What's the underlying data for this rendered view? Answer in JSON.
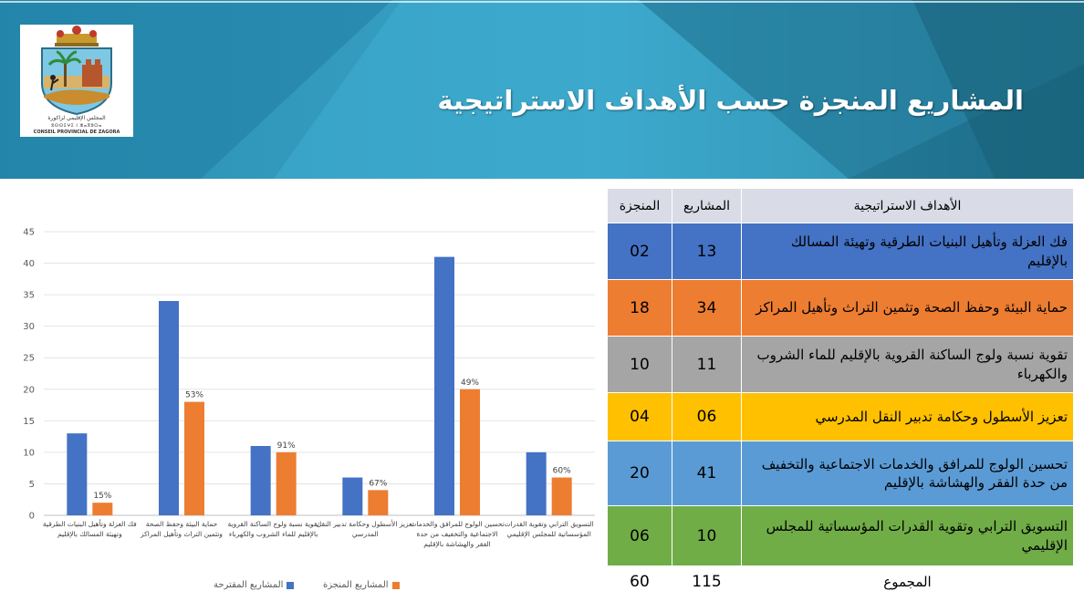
{
  "header": {
    "title": "المشاريع المنجزة حسب الأهداف الاستراتيجية",
    "logo": {
      "line1": "المجلس الإقليمي لزاكورة",
      "line2": "ⵓⵙⵙⵉⵖⵉ ⵏ ⵣⴰⴳⵓⵔⴰ",
      "line3": "CONSEIL PROVINCIAL DE ZAGORA"
    }
  },
  "colors": {
    "proposed": "#4472c4",
    "completed": "#ed7d31",
    "banner_dark": "#1f6f8b",
    "banner_mid": "#2e95b7",
    "banner_light": "#54b4d2"
  },
  "chart_data": {
    "type": "bar",
    "categories": [
      "فك العزلة وتأهيل البنيات الطرقية وتهيئة المسالك بالإقليم",
      "حماية البيئة وحفظ الصحة وتثمين التراث وتأهيل المراكز",
      "تقوية نسبة ولوج الساكنة القروية بالإقليم للماء الشروب والكهرباء",
      "تعزيز الأسطول وحكامة تدبير النقل المدرسي",
      "تحسين الولوج للمرافق والخدمات الاجتماعية والتخفيف من حدة الفقر والهشاشة بالإقليم",
      "التسويق الترابي وتقوية القدرات المؤسساتية للمجلس الإقليمي"
    ],
    "category_lines": [
      [
        "فك العزلة وتأهيل البنيات الطرقية",
        "وتهيئة المسالك بالإقليم"
      ],
      [
        "حماية البيئة وحفظ الصحة",
        "وتثمين التراث وتأهيل المراكز"
      ],
      [
        "تقوية نسبة ولوج الساكنة القروية",
        "بالإقليم للماء الشروب والكهرباء"
      ],
      [
        "تعزيز الأسطول وحكامة تدبير النقل",
        "المدرسي"
      ],
      [
        "تحسين الولوج للمرافق والخدمات",
        "الاجتماعية والتخفيف من حدة",
        "الفقر والهشاشة بالإقليم"
      ],
      [
        "التسويق الترابي وتقوية القدرات",
        "المؤسساتية للمجلس الإقليمي"
      ]
    ],
    "series": [
      {
        "name": "المشاريع المقترحة",
        "values": [
          13,
          34,
          11,
          6,
          41,
          10
        ]
      },
      {
        "name": "المشاريع المنجزة",
        "values": [
          2,
          18,
          10,
          4,
          20,
          6
        ]
      }
    ],
    "data_labels": [
      "15%",
      "53%",
      "91%",
      "67%",
      "49%",
      "60%"
    ],
    "ylim": [
      0,
      45
    ],
    "yticks": [
      0,
      5,
      10,
      15,
      20,
      25,
      30,
      35,
      40,
      45
    ],
    "legend_position": "bottom",
    "title": "",
    "xlabel": "",
    "ylabel": ""
  },
  "table": {
    "headers": {
      "goals": "الأهداف الاستراتيجية",
      "projects": "المشاريع",
      "completed": "المنجزة"
    },
    "rows": [
      {
        "goal": "فك العزلة وتأهيل البنيات الطرقية وتهيئة المسالك بالإقليم",
        "projects": "13",
        "completed": "02",
        "color": "#4472c4"
      },
      {
        "goal": "حماية البيئة وحفظ الصحة وتثمين التراث وتأهيل المراكز",
        "projects": "34",
        "completed": "18",
        "color": "#ed7d31"
      },
      {
        "goal": "تقوية نسبة ولوج الساكنة القروية بالإقليم للماء الشروب والكهرباء",
        "projects": "11",
        "completed": "10",
        "color": "#a5a5a5"
      },
      {
        "goal": "تعزيز الأسطول وحكامة تدبير النقل المدرسي",
        "projects": "06",
        "completed": "04",
        "color": "#ffc000"
      },
      {
        "goal": "تحسين الولوج للمرافق والخدمات الاجتماعية والتخفيف من حدة الفقر والهشاشة بالإقليم",
        "projects": "41",
        "completed": "20",
        "color": "#5b9bd5"
      },
      {
        "goal": "التسويق الترابي وتقوية القدرات المؤسساتية للمجلس الإقليمي",
        "projects": "10",
        "completed": "06",
        "color": "#70ad47"
      }
    ],
    "total": {
      "label": "المجموع",
      "projects": "115",
      "completed": "60"
    }
  }
}
